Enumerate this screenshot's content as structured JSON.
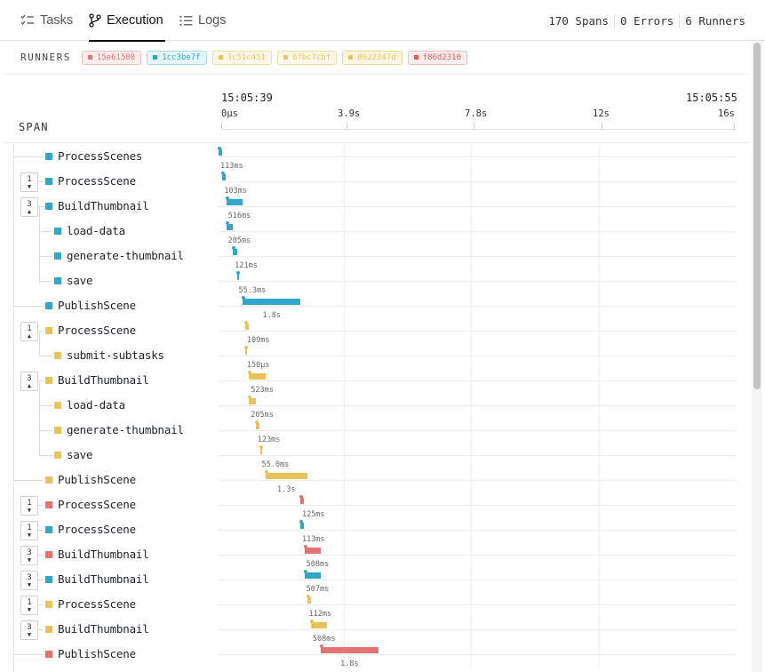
{
  "tabs": [
    {
      "label": "Tasks",
      "icon": "checklist-icon"
    },
    {
      "label": "Execution",
      "icon": "branch-icon",
      "active": true
    },
    {
      "label": "Logs",
      "icon": "list-icon"
    }
  ],
  "stats": {
    "spans": "170 Spans",
    "errors": "0 Errors",
    "runners": "6 Runners"
  },
  "runners": {
    "label": "RUNNERS",
    "chips": [
      {
        "id": "15e61580",
        "color": "#e57373",
        "bg": "#fdecec",
        "border": "#f2bcbc"
      },
      {
        "id": "1cc3be7f",
        "color": "#2ea7c9",
        "bg": "#e6f5fa",
        "border": "#a9dbe9"
      },
      {
        "id": "3c51c451",
        "color": "#e8c35a",
        "bg": "#fdf8e8",
        "border": "#efdca0"
      },
      {
        "id": "6fbc7cbf",
        "color": "#e8c35a",
        "bg": "#fdf8e8",
        "border": "#efdca0"
      },
      {
        "id": "8922347d",
        "color": "#e8c35a",
        "bg": "#fdf6e3",
        "border": "#efd497"
      },
      {
        "id": "f86d2310",
        "color": "#e05a5a",
        "bg": "#fdecec",
        "border": "#f2bcbc"
      }
    ]
  },
  "timeline": {
    "span_label": "SPAN",
    "start_time": "15:05:39",
    "end_time": "15:05:55",
    "ticks": [
      "0µs",
      "3.9s",
      "7.8s",
      "12s",
      "16s"
    ]
  },
  "spans": [
    {
      "name": "ProcessScenes",
      "depth": 0,
      "color": "#2ea7c9",
      "start": 0.0,
      "duration": 0.113,
      "dur_label": "113ms",
      "count": null
    },
    {
      "name": "ProcessScene",
      "depth": 0,
      "color": "#2ea7c9",
      "start": 0.12,
      "duration": 0.103,
      "dur_label": "103ms",
      "count": "1",
      "caret": "down"
    },
    {
      "name": "BuildThumbnail",
      "depth": 0,
      "color": "#2ea7c9",
      "start": 0.24,
      "duration": 0.516,
      "dur_label": "516ms",
      "count": "3",
      "caret": "up"
    },
    {
      "name": "load-data",
      "depth": 1,
      "color": "#2ea7c9",
      "start": 0.24,
      "duration": 0.205,
      "dur_label": "205ms",
      "count": null
    },
    {
      "name": "generate-thumbnail",
      "depth": 1,
      "color": "#2ea7c9",
      "start": 0.45,
      "duration": 0.121,
      "dur_label": "121ms",
      "count": null
    },
    {
      "name": "save",
      "depth": 1,
      "color": "#2ea7c9",
      "start": 0.57,
      "duration": 0.0553,
      "dur_label": "55.3ms",
      "count": null
    },
    {
      "name": "PublishScene",
      "depth": 0,
      "color": "#2ea7c9",
      "start": 0.76,
      "duration": 1.8,
      "dur_label": "1.8s",
      "count": null
    },
    {
      "name": "ProcessScene",
      "depth": 0,
      "color": "#e8c35a",
      "start": 0.83,
      "duration": 0.109,
      "dur_label": "109ms",
      "count": "1",
      "caret": "up"
    },
    {
      "name": "submit-subtasks",
      "depth": 1,
      "color": "#e8c35a",
      "start": 0.83,
      "duration": 0.00015,
      "dur_label": "150µs",
      "count": null
    },
    {
      "name": "BuildThumbnail",
      "depth": 0,
      "color": "#e8c35a",
      "start": 0.95,
      "duration": 0.523,
      "dur_label": "523ms",
      "count": "3",
      "caret": "up"
    },
    {
      "name": "load-data",
      "depth": 1,
      "color": "#e8c35a",
      "start": 0.95,
      "duration": 0.205,
      "dur_label": "205ms",
      "count": null
    },
    {
      "name": "generate-thumbnail",
      "depth": 1,
      "color": "#e8c35a",
      "start": 1.16,
      "duration": 0.123,
      "dur_label": "123ms",
      "count": null
    },
    {
      "name": "save",
      "depth": 1,
      "color": "#e8c35a",
      "start": 1.29,
      "duration": 0.055,
      "dur_label": "55.0ms",
      "count": null
    },
    {
      "name": "PublishScene",
      "depth": 0,
      "color": "#e8c35a",
      "start": 1.47,
      "duration": 1.3,
      "dur_label": "1.3s",
      "count": null
    },
    {
      "name": "ProcessScene",
      "depth": 0,
      "color": "#e57373",
      "start": 2.55,
      "duration": 0.125,
      "dur_label": "125ms",
      "count": "1",
      "caret": "down"
    },
    {
      "name": "ProcessScene",
      "depth": 0,
      "color": "#2ea7c9",
      "start": 2.55,
      "duration": 0.113,
      "dur_label": "113ms",
      "count": "1",
      "caret": "down"
    },
    {
      "name": "BuildThumbnail",
      "depth": 0,
      "color": "#e57373",
      "start": 2.68,
      "duration": 0.508,
      "dur_label": "508ms",
      "count": "3",
      "caret": "down"
    },
    {
      "name": "BuildThumbnail",
      "depth": 0,
      "color": "#2ea7c9",
      "start": 2.68,
      "duration": 0.507,
      "dur_label": "507ms",
      "count": "3",
      "caret": "down"
    },
    {
      "name": "ProcessScene",
      "depth": 0,
      "color": "#e8c35a",
      "start": 2.76,
      "duration": 0.112,
      "dur_label": "112ms",
      "count": "1",
      "caret": "down"
    },
    {
      "name": "BuildThumbnail",
      "depth": 0,
      "color": "#e8c35a",
      "start": 2.88,
      "duration": 0.508,
      "dur_label": "508ms",
      "count": "3",
      "caret": "down"
    },
    {
      "name": "PublishScene",
      "depth": 0,
      "color": "#e57373",
      "start": 3.19,
      "duration": 1.8,
      "dur_label": "1.8s",
      "count": null
    }
  ]
}
